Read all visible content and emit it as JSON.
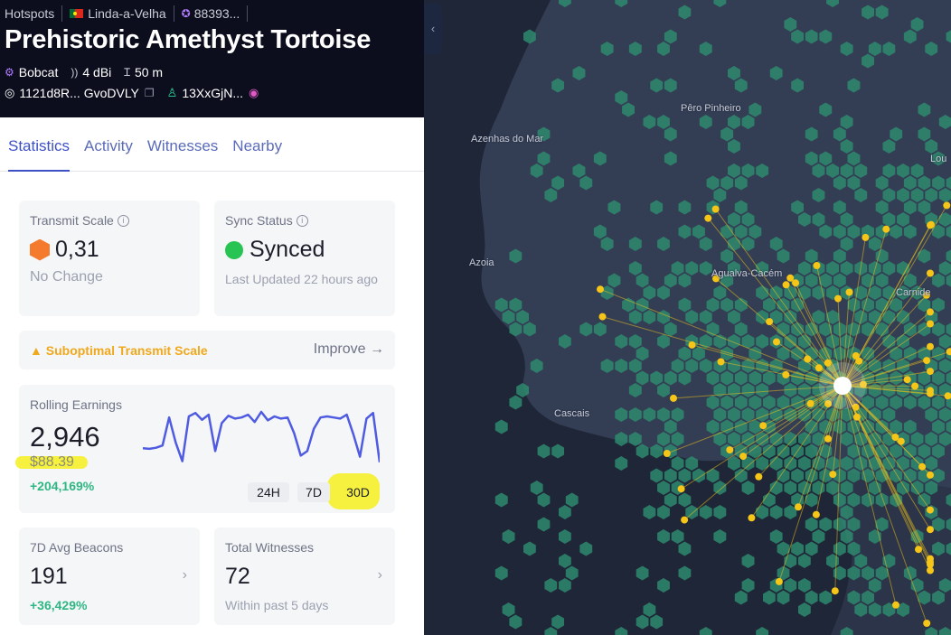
{
  "breadcrumbs": {
    "root": "Hotspots",
    "location": "Linda-a-Velha",
    "hex_id": "88393..."
  },
  "hotspot": {
    "name": "Prehistoric Amethyst Tortoise",
    "maker": "Bobcat",
    "gain": "4 dBi",
    "elevation": "50 m",
    "address": "1121d8R... GvoDVLY",
    "owner": "13XxGjN..."
  },
  "tabs": [
    "Statistics",
    "Activity",
    "Witnesses",
    "Nearby"
  ],
  "transmit_scale": {
    "label": "Transmit Scale",
    "value": "0,31",
    "change": "No Change",
    "color": "#f47b2e"
  },
  "sync_status": {
    "label": "Sync Status",
    "value": "Synced",
    "updated": "Last Updated 22 hours ago",
    "color": "#27c353"
  },
  "warning": {
    "text": "Suboptimal Transmit Scale",
    "action": "Improve →"
  },
  "earnings": {
    "label": "Rolling Earnings",
    "value": "2,946",
    "usd": "$88.39",
    "change": "+204,169%",
    "ranges": [
      "24H",
      "7D",
      "30D"
    ],
    "selected_range": "30D",
    "line_color": "#4f5be0",
    "sparkline": [
      0.35,
      0.34,
      0.36,
      0.4,
      0.9,
      0.45,
      0.12,
      0.92,
      0.98,
      0.86,
      0.95,
      0.3,
      0.8,
      0.93,
      0.88,
      0.9,
      0.95,
      0.82,
      1.0,
      0.85,
      0.92,
      0.88,
      0.9,
      0.62,
      0.22,
      0.3,
      0.7,
      0.9,
      0.92,
      0.9,
      0.88,
      0.95,
      0.6,
      0.2,
      0.88,
      0.98,
      0.1
    ]
  },
  "beacons": {
    "label": "7D Avg Beacons",
    "value": "191",
    "change": "+36,429%"
  },
  "witnesses": {
    "label": "Total Witnesses",
    "value": "72",
    "sub": "Within past 5 days"
  },
  "map": {
    "labels": [
      "Azenhas do Mar",
      "Pêro Pinheiro",
      "Azoia",
      "Agualva-Cacém",
      "Carnide",
      "Cascais",
      "Lou"
    ],
    "hex_color": "#2e8a6e",
    "witness_color": "#f5c518"
  }
}
